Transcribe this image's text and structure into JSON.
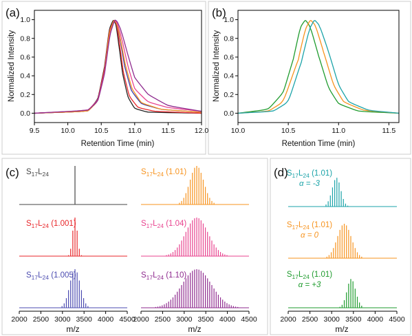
{
  "chart_data": [
    {
      "panel": "(a)",
      "type": "line",
      "xlabel": "Retention Time (min)",
      "ylabel": "Normalized Intensity",
      "xlim": [
        9.5,
        12.0
      ],
      "ylim": [
        -0.1,
        1.1
      ],
      "xticks": [
        "9.5",
        "10.0",
        "10.5",
        "11.0",
        "11.5",
        "12.0"
      ],
      "yticks": [
        "0.0",
        "0.2",
        "0.4",
        "0.6",
        "0.8",
        "1.0"
      ],
      "series": [
        {
          "color": "#222222",
          "x": [
            9.5,
            10.3,
            10.45,
            10.55,
            10.62,
            10.68,
            10.72,
            10.76,
            10.82,
            10.9,
            11.0,
            11.2,
            12.0
          ],
          "y": [
            0.0,
            0.02,
            0.15,
            0.5,
            0.9,
            1.0,
            0.95,
            0.75,
            0.42,
            0.17,
            0.05,
            0.01,
            0.0
          ]
        },
        {
          "color": "#e8262a",
          "x": [
            9.5,
            10.3,
            10.45,
            10.55,
            10.62,
            10.69,
            10.73,
            10.77,
            10.83,
            10.92,
            11.05,
            11.3,
            12.0
          ],
          "y": [
            0.0,
            0.02,
            0.14,
            0.48,
            0.88,
            1.0,
            0.95,
            0.76,
            0.44,
            0.18,
            0.06,
            0.02,
            0.0
          ]
        },
        {
          "color": "#3b3ba8",
          "x": [
            9.5,
            10.3,
            10.45,
            10.55,
            10.62,
            10.69,
            10.73,
            10.78,
            10.85,
            10.95,
            11.1,
            11.4,
            12.0
          ],
          "y": [
            0.0,
            0.02,
            0.13,
            0.45,
            0.86,
            1.0,
            0.96,
            0.8,
            0.5,
            0.24,
            0.1,
            0.04,
            0.01
          ]
        },
        {
          "color": "#f7931e",
          "x": [
            9.5,
            10.3,
            10.45,
            10.55,
            10.62,
            10.69,
            10.73,
            10.78,
            10.86,
            10.96,
            11.1,
            11.4,
            12.0
          ],
          "y": [
            0.0,
            0.02,
            0.13,
            0.45,
            0.86,
            1.0,
            0.96,
            0.82,
            0.52,
            0.26,
            0.11,
            0.04,
            0.01
          ]
        },
        {
          "color": "#e8438f",
          "x": [
            9.5,
            10.3,
            10.45,
            10.55,
            10.63,
            10.7,
            10.74,
            10.8,
            10.9,
            11.0,
            11.2,
            11.5,
            12.0
          ],
          "y": [
            0.0,
            0.03,
            0.14,
            0.44,
            0.85,
            1.0,
            0.96,
            0.82,
            0.5,
            0.26,
            0.12,
            0.06,
            0.02
          ]
        },
        {
          "color": "#8e2a8e",
          "x": [
            9.5,
            10.3,
            10.45,
            10.55,
            10.63,
            10.7,
            10.74,
            10.8,
            10.9,
            11.0,
            11.2,
            11.5,
            12.0
          ],
          "y": [
            0.0,
            0.03,
            0.13,
            0.42,
            0.84,
            1.0,
            0.98,
            0.88,
            0.62,
            0.38,
            0.2,
            0.08,
            0.02
          ]
        }
      ]
    },
    {
      "panel": "(b)",
      "type": "line",
      "xlabel": "Retention Time (min)",
      "ylabel": "Normalized Intensity",
      "xlim": [
        10.0,
        11.6
      ],
      "ylim": [
        -0.1,
        1.1
      ],
      "xticks": [
        "10.0",
        "10.5",
        "11.0",
        "11.5"
      ],
      "yticks": [
        "0.0",
        "0.2",
        "0.4",
        "0.6",
        "0.8",
        "1.0"
      ],
      "series": [
        {
          "color": "#1e9b2d",
          "x": [
            10.0,
            10.3,
            10.45,
            10.55,
            10.62,
            10.67,
            10.72,
            10.8,
            10.9,
            11.0,
            11.2,
            11.6
          ],
          "y": [
            0.0,
            0.04,
            0.22,
            0.58,
            0.92,
            1.0,
            0.92,
            0.62,
            0.27,
            0.1,
            0.02,
            0.0
          ]
        },
        {
          "color": "#f7931e",
          "x": [
            10.0,
            10.3,
            10.45,
            10.6,
            10.67,
            10.72,
            10.77,
            10.85,
            10.95,
            11.05,
            11.25,
            11.6
          ],
          "y": [
            0.0,
            0.02,
            0.12,
            0.58,
            0.9,
            1.0,
            0.94,
            0.66,
            0.3,
            0.12,
            0.03,
            0.0
          ]
        },
        {
          "color": "#1aa3a8",
          "x": [
            10.0,
            10.35,
            10.5,
            10.63,
            10.71,
            10.76,
            10.81,
            10.9,
            11.0,
            11.1,
            11.3,
            11.6
          ],
          "y": [
            0.0,
            0.02,
            0.12,
            0.55,
            0.9,
            1.0,
            0.94,
            0.66,
            0.3,
            0.12,
            0.03,
            0.0
          ]
        }
      ]
    },
    {
      "panel": "(c)",
      "type": "bar",
      "xlabel": "m/z",
      "xlim": [
        2000,
        4500
      ],
      "xticks": [
        "2000",
        "2500",
        "3000",
        "3500",
        "4000",
        "4500"
      ],
      "series": [
        {
          "label_base": "S",
          "label_sub1": "17",
          "label_mid": "L",
          "label_sub2": "24",
          "label_paren": "",
          "color": "#444444",
          "mean": 3290,
          "sigma": 4,
          "spacing": 50
        },
        {
          "label_base": "S",
          "label_sub1": "17",
          "label_mid": "L",
          "label_sub2": "24",
          "label_paren": " (1.001)",
          "color": "#e8262a",
          "mean": 3290,
          "sigma": 55,
          "spacing": 50
        },
        {
          "label_base": "S",
          "label_sub1": "17",
          "label_mid": "L",
          "label_sub2": "24",
          "label_paren": " (1.005)",
          "color": "#4b4bb0",
          "mean": 3290,
          "sigma": 120,
          "spacing": 50
        },
        {
          "label_base": "S",
          "label_sub1": "17",
          "label_mid": "L",
          "label_sub2": "24",
          "label_paren": " (1.01)",
          "color": "#f7931e",
          "mean": 3290,
          "sigma": 160,
          "spacing": 50
        },
        {
          "label_base": "S",
          "label_sub1": "17",
          "label_mid": "L",
          "label_sub2": "24",
          "label_paren": " (1.04)",
          "color": "#e8438f",
          "mean": 3290,
          "sigma": 260,
          "spacing": 50
        },
        {
          "label_base": "S",
          "label_sub1": "17",
          "label_mid": "L",
          "label_sub2": "24",
          "label_paren": " (1.10)",
          "color": "#8e2a8e",
          "mean": 3290,
          "sigma": 340,
          "spacing": 50
        }
      ]
    },
    {
      "panel": "(d)",
      "type": "bar",
      "xlabel": "m/z",
      "xlim": [
        2000,
        4500
      ],
      "xticks": [
        "2000",
        "2500",
        "3000",
        "3500",
        "4000",
        "4500"
      ],
      "series": [
        {
          "label_base": "S",
          "label_sub1": "17",
          "label_mid": "L",
          "label_sub2": "24",
          "label_paren": " (1.01)",
          "alpha_label": "α = -3",
          "color": "#1aa3a8",
          "mean": 3170,
          "sigma": 120,
          "skew": -1,
          "spacing": 50
        },
        {
          "label_base": "S",
          "label_sub1": "17",
          "label_mid": "L",
          "label_sub2": "24",
          "label_paren": " (1.01)",
          "alpha_label": "α = 0",
          "color": "#f7931e",
          "mean": 3290,
          "sigma": 160,
          "skew": 0,
          "spacing": 50
        },
        {
          "label_base": "S",
          "label_sub1": "17",
          "label_mid": "L",
          "label_sub2": "24",
          "label_paren": " (1.01)",
          "alpha_label": "α = +3",
          "color": "#1e9b2d",
          "mean": 3390,
          "sigma": 120,
          "skew": 1,
          "spacing": 50
        }
      ]
    }
  ]
}
